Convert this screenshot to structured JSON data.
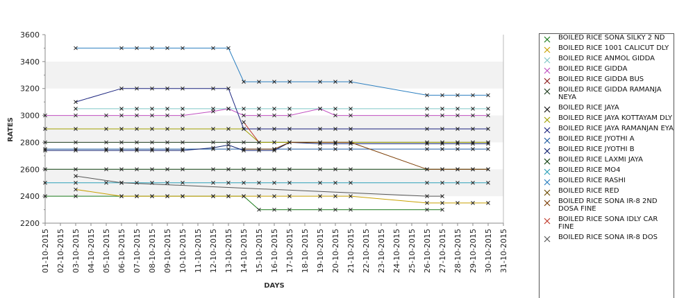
{
  "chart_data": {
    "type": "line",
    "xlabel": "DAYS",
    "ylabel": "RATES",
    "ylim": [
      2200,
      3600
    ],
    "yticks": [
      2200,
      2400,
      2600,
      2800,
      3000,
      3200,
      3400,
      3600
    ],
    "grid": "alternating horizontal bands",
    "legend_position": "right",
    "categories": [
      "01-10-2015",
      "02-10-2015",
      "03-10-2015",
      "04-10-2015",
      "05-10-2015",
      "06-10-2015",
      "07-10-2015",
      "08-10-2015",
      "09-10-2015",
      "10-10-2015",
      "11-10-2015",
      "12-10-2015",
      "13-10-2015",
      "14-10-2015",
      "15-10-2015",
      "16-10-2015",
      "17-10-2015",
      "18-10-2015",
      "19-10-2015",
      "20-10-2015",
      "21-10-2015",
      "22-10-2015",
      "23-10-2015",
      "24-10-2015",
      "25-10-2015",
      "26-10-2015",
      "27-10-2015",
      "28-10-2015",
      "29-10-2015",
      "30-10-2015",
      "31-10-2015"
    ],
    "series": [
      {
        "name": "BOILED RICE SONA SILKY 2 ND",
        "color": "#1a7a1a",
        "values": [
          2400,
          null,
          2400,
          null,
          null,
          2400,
          2400,
          2400,
          2400,
          2400,
          null,
          2400,
          2400,
          2400,
          2300,
          2300,
          2300,
          null,
          2300,
          2300,
          2300,
          null,
          null,
          null,
          null,
          2300,
          2300,
          null,
          null,
          null,
          null
        ]
      },
      {
        "name": "BOILED RICE 1001 CALICUT DLY",
        "color": "#c8a000",
        "values": [
          null,
          null,
          2450,
          null,
          null,
          2400,
          2400,
          2400,
          2400,
          2400,
          null,
          2400,
          2400,
          2400,
          2400,
          2400,
          2400,
          null,
          2400,
          2400,
          2400,
          null,
          null,
          null,
          null,
          2350,
          2350,
          2350,
          2350,
          2350,
          null
        ]
      },
      {
        "name": "BOILED RICE ANMOL GIDDA",
        "color": "#7fc6c6",
        "values": [
          null,
          null,
          3050,
          null,
          null,
          3050,
          3050,
          3050,
          3050,
          3050,
          null,
          3050,
          3050,
          3050,
          3050,
          3050,
          3050,
          null,
          3050,
          3050,
          3050,
          null,
          null,
          null,
          null,
          3050,
          3050,
          3050,
          3050,
          3050,
          null
        ]
      },
      {
        "name": "BOILED RICE GIDDA",
        "color": "#c04fc0",
        "values": [
          3000,
          null,
          3000,
          null,
          3000,
          3000,
          3000,
          3000,
          3000,
          3000,
          null,
          3030,
          3050,
          3000,
          3000,
          3000,
          3000,
          null,
          3050,
          3000,
          3000,
          null,
          null,
          null,
          null,
          3000,
          3000,
          3000,
          3000,
          3000,
          null
        ]
      },
      {
        "name": "BOILED RICE GIDDA BUS",
        "color": "#8b1a1a",
        "values": [
          null,
          null,
          null,
          null,
          null,
          null,
          null,
          null,
          null,
          null,
          null,
          null,
          null,
          null,
          null,
          null,
          null,
          null,
          null,
          null,
          null,
          null,
          null,
          null,
          null,
          null,
          null,
          null,
          null,
          null,
          null
        ]
      },
      {
        "name": "BOILED RICE GIDDA RAMANJA NEYA",
        "color": "#1c3a1c",
        "values": [
          2800,
          null,
          2800,
          null,
          2800,
          2800,
          2800,
          2800,
          2800,
          2800,
          null,
          2800,
          2800,
          2800,
          2800,
          2800,
          2800,
          null,
          2800,
          2800,
          2800,
          null,
          null,
          null,
          null,
          2800,
          2800,
          2800,
          2800,
          2800,
          null
        ]
      },
      {
        "name": "BOILED RICE JAYA",
        "color": "#101010",
        "values": [
          null,
          null,
          null,
          null,
          null,
          null,
          null,
          null,
          null,
          null,
          null,
          null,
          null,
          null,
          null,
          null,
          null,
          null,
          null,
          null,
          null,
          null,
          null,
          null,
          null,
          null,
          null,
          null,
          null,
          null,
          null
        ]
      },
      {
        "name": "BOILED RICE JAYA KOTTAYAM DLY",
        "color": "#a0a000",
        "values": [
          2900,
          null,
          2900,
          null,
          2900,
          2900,
          2900,
          2900,
          2900,
          2900,
          null,
          2900,
          2900,
          2900,
          2800,
          2800,
          2800,
          null,
          2800,
          2800,
          2800,
          null,
          null,
          null,
          null,
          2800,
          2800,
          2800,
          2800,
          2800,
          null
        ]
      },
      {
        "name": "BOILED RICE JAYA RAMANJAN EYA",
        "color": "#1a237e",
        "values": [
          null,
          null,
          3100,
          null,
          null,
          3200,
          3200,
          3200,
          3200,
          3200,
          null,
          3200,
          3200,
          2900,
          2900,
          2900,
          2900,
          null,
          2900,
          2900,
          2900,
          null,
          null,
          null,
          null,
          2900,
          2900,
          2900,
          2900,
          2900,
          null
        ]
      },
      {
        "name": "BOILED RICE JYOTHI A",
        "color": "#1e5aa0",
        "values": [
          2750,
          null,
          2750,
          null,
          2750,
          2750,
          2750,
          2750,
          2750,
          2750,
          null,
          2750,
          2750,
          2750,
          2750,
          2750,
          2750,
          null,
          2750,
          2750,
          2750,
          null,
          null,
          null,
          null,
          2750,
          2750,
          2750,
          2750,
          2750,
          null
        ]
      },
      {
        "name": "BOILED RICE JYOTHI B",
        "color": "#0d1f6e",
        "values": [
          2740,
          null,
          2740,
          null,
          2740,
          2740,
          2740,
          2740,
          2740,
          2740,
          null,
          2760,
          2780,
          2740,
          2740,
          2740,
          2800,
          null,
          2790,
          2790,
          2790,
          null,
          null,
          null,
          null,
          2790,
          2790,
          2790,
          2790,
          2790,
          null
        ]
      },
      {
        "name": "BOILED RICE LAXMI JAYA",
        "color": "#0b3d0b",
        "values": [
          2600,
          null,
          2600,
          null,
          2600,
          2600,
          2600,
          2600,
          2600,
          2600,
          null,
          2600,
          2600,
          2600,
          2600,
          2600,
          2600,
          null,
          2600,
          2600,
          2600,
          null,
          null,
          null,
          null,
          2600,
          2600,
          2600,
          2600,
          2600,
          null
        ]
      },
      {
        "name": "BOILED RICE MO4",
        "color": "#2aa0b8",
        "values": [
          2500,
          null,
          2500,
          null,
          2500,
          2500,
          2500,
          2500,
          2500,
          2500,
          null,
          2500,
          2500,
          2500,
          2500,
          2500,
          2500,
          null,
          2500,
          2500,
          2500,
          null,
          null,
          null,
          null,
          2500,
          2500,
          2500,
          2500,
          2500,
          null
        ]
      },
      {
        "name": "BOILED RICE RASHI",
        "color": "#2b7fc0",
        "values": [
          null,
          null,
          3500,
          null,
          null,
          3500,
          3500,
          3500,
          3500,
          3500,
          null,
          3500,
          3500,
          3250,
          3250,
          3250,
          3250,
          null,
          3250,
          3250,
          3250,
          null,
          null,
          null,
          null,
          3150,
          3150,
          3150,
          3150,
          3150,
          null
        ]
      },
      {
        "name": "BOILED RICE RED",
        "color": "#6b4a00",
        "values": [
          null,
          null,
          null,
          null,
          null,
          null,
          null,
          null,
          null,
          null,
          null,
          null,
          null,
          null,
          null,
          null,
          null,
          null,
          null,
          null,
          null,
          null,
          null,
          null,
          null,
          null,
          null,
          null,
          null,
          null,
          null
        ]
      },
      {
        "name": "BOILED RICE SONA  IR-8 2ND DOSA FINE",
        "color": "#7a3a00",
        "values": [
          null,
          null,
          null,
          null,
          null,
          null,
          null,
          null,
          null,
          null,
          null,
          null,
          null,
          2750,
          2750,
          2750,
          2800,
          null,
          2800,
          2800,
          2800,
          null,
          null,
          null,
          null,
          2600,
          2600,
          2600,
          2600,
          2600,
          null
        ]
      },
      {
        "name": "BOILED RICE SONA IDLY CAR FINE",
        "color": "#c0392b",
        "values": [
          null,
          null,
          null,
          null,
          null,
          null,
          null,
          null,
          null,
          null,
          null,
          null,
          null,
          2950,
          2800,
          null,
          null,
          null,
          null,
          null,
          null,
          null,
          null,
          null,
          null,
          null,
          null,
          null,
          null,
          null,
          null
        ]
      },
      {
        "name": "BOILED RICE SONA IR-8 DOS",
        "color": "#555555",
        "values": [
          null,
          null,
          2550,
          null,
          null,
          2500,
          null,
          null,
          null,
          null,
          null,
          null,
          null,
          null,
          null,
          null,
          null,
          null,
          null,
          null,
          null,
          null,
          null,
          null,
          null,
          2400,
          2400,
          null,
          null,
          null,
          null
        ]
      }
    ]
  }
}
